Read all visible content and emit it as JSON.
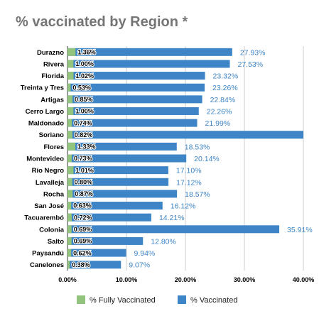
{
  "chart_data": {
    "type": "bar",
    "orientation": "horizontal",
    "title": "% vaccinated by Region *",
    "xlabel": "",
    "ylabel": "",
    "xlim": [
      0,
      40
    ],
    "x_ticks": [
      "0.00%",
      "10.00%",
      "20.00%",
      "30.00%",
      "40.00%"
    ],
    "grid": true,
    "legend_position": "bottom",
    "categories": [
      "Durazno",
      "Rivera",
      "Florida",
      "Treinta y Tres",
      "Artigas",
      "Cerro Largo",
      "Maldonado",
      "Soriano",
      "Flores",
      "Montevideo",
      "Río Negro",
      "Lavalleja",
      "Rocha",
      "San José",
      "Tacuarembó",
      "Colonia",
      "Salto",
      "Paysandú",
      "Canelones"
    ],
    "series": [
      {
        "name": "% Fully Vaccinated",
        "color": "#93c47d",
        "values": [
          1.36,
          1.0,
          1.02,
          0.53,
          0.85,
          1.0,
          0.74,
          0.82,
          1.33,
          0.73,
          1.01,
          0.8,
          0.87,
          0.63,
          0.72,
          0.69,
          0.69,
          0.62,
          0.38
        ],
        "labels": [
          "1.36%",
          "1.00%",
          "1.02%",
          "0.53%",
          "0.85%",
          "1.00%",
          "0.74%",
          "0.82%",
          "1.33%",
          "0.73%",
          "1.01%",
          "0.80%",
          "0.87%",
          "0.63%",
          "0.72%",
          "0.69%",
          "0.69%",
          "0.62%",
          "0.38%"
        ]
      },
      {
        "name": "% Vaccinated",
        "color": "#3d85c6",
        "values": [
          27.93,
          27.53,
          23.32,
          23.26,
          22.84,
          22.26,
          21.99,
          41.5,
          18.53,
          20.14,
          17.1,
          17.12,
          18.57,
          16.12,
          14.21,
          35.91,
          12.8,
          9.94,
          9.07
        ],
        "labels": [
          "27.93%",
          "27.53%",
          "23.32%",
          "23.26%",
          "22.84%",
          "22.26%",
          "21.99%",
          "",
          "18.53%",
          "20.14%",
          "17.10%",
          "17.12%",
          "18.57%",
          "16.12%",
          "14.21%",
          "35.91%",
          "12.80%",
          "9.94%",
          "9.07%"
        ]
      }
    ],
    "colors": {
      "label_dark": "#000000",
      "label_value": "#3d85c6",
      "grid": "#cccccc",
      "title": "#757575"
    }
  }
}
